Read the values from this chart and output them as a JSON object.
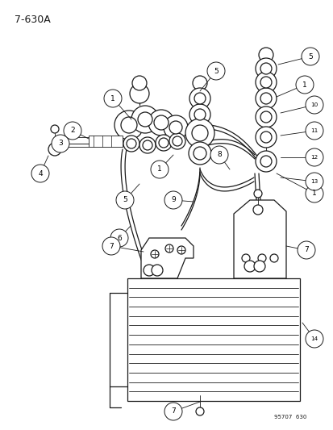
{
  "title_text": "7-630A",
  "footer_text": "95707  630",
  "bg_color": "#ffffff",
  "line_color": "#1a1a1a",
  "fig_width": 4.14,
  "fig_height": 5.33,
  "dpi": 100
}
